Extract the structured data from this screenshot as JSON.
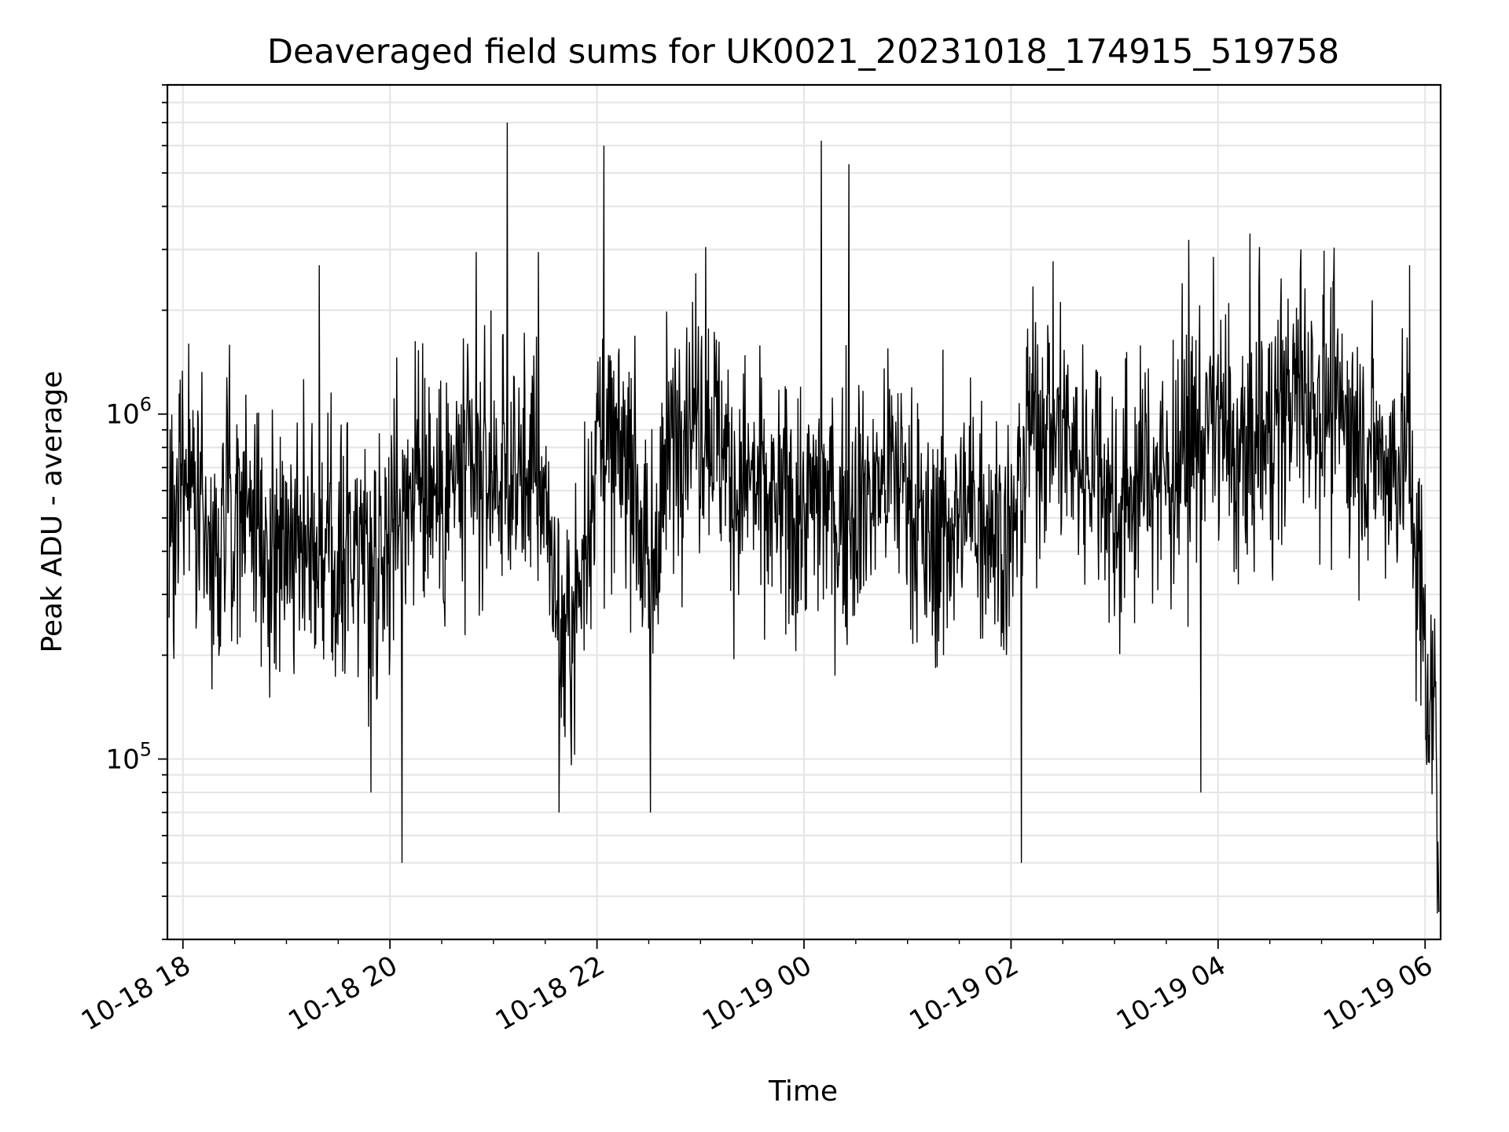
{
  "chart_data": {
    "type": "line",
    "title": "Deaveraged field sums for UK0021_20231018_174915_519758",
    "xlabel": "Time",
    "ylabel": "Peak ADU - average",
    "x_scale": "time",
    "y_scale": "log",
    "xlim": [
      "2023-10-18T17:51",
      "2023-10-19T06:09"
    ],
    "ylim": [
      30000,
      9000000
    ],
    "x_ticks": [
      "10-18 18",
      "10-18 20",
      "10-18 22",
      "10-19 00",
      "10-19 02",
      "10-19 04",
      "10-19 06"
    ],
    "y_ticks": [
      {
        "base": "10",
        "exp": "5",
        "value": 100000
      },
      {
        "base": "10",
        "exp": "6",
        "value": 1000000
      }
    ],
    "grid": true,
    "line_color": "#000000",
    "series": [
      {
        "x": [
          "2023-10-18T17:52",
          "2023-10-18T18:00",
          "2023-10-18T18:10",
          "2023-10-18T18:20",
          "2023-10-18T18:30",
          "2023-10-18T18:40",
          "2023-10-18T18:50",
          "2023-10-18T19:00",
          "2023-10-18T19:10",
          "2023-10-18T19:20",
          "2023-10-18T19:30",
          "2023-10-18T19:40",
          "2023-10-18T19:50",
          "2023-10-18T20:00",
          "2023-10-18T20:10",
          "2023-10-18T20:20",
          "2023-10-18T20:30",
          "2023-10-18T20:40",
          "2023-10-18T20:50",
          "2023-10-18T21:00",
          "2023-10-18T21:10",
          "2023-10-18T21:20",
          "2023-10-18T21:30",
          "2023-10-18T21:40",
          "2023-10-18T21:50",
          "2023-10-18T22:00",
          "2023-10-18T22:10",
          "2023-10-18T22:20",
          "2023-10-18T22:30",
          "2023-10-18T22:40",
          "2023-10-18T22:50",
          "2023-10-18T23:00",
          "2023-10-18T23:10",
          "2023-10-18T23:20",
          "2023-10-18T23:30",
          "2023-10-18T23:40",
          "2023-10-18T23:50",
          "2023-10-19T00:00",
          "2023-10-19T00:10",
          "2023-10-19T00:20",
          "2023-10-19T00:30",
          "2023-10-19T00:40",
          "2023-10-19T00:50",
          "2023-10-19T01:00",
          "2023-10-19T01:10",
          "2023-10-19T01:20",
          "2023-10-19T01:30",
          "2023-10-19T01:40",
          "2023-10-19T01:50",
          "2023-10-19T02:00",
          "2023-10-19T02:10",
          "2023-10-19T02:20",
          "2023-10-19T02:30",
          "2023-10-19T02:40",
          "2023-10-19T02:50",
          "2023-10-19T03:00",
          "2023-10-19T03:10",
          "2023-10-19T03:20",
          "2023-10-19T03:30",
          "2023-10-19T03:40",
          "2023-10-19T03:50",
          "2023-10-19T04:00",
          "2023-10-19T04:10",
          "2023-10-19T04:20",
          "2023-10-19T04:30",
          "2023-10-19T04:40",
          "2023-10-19T04:50",
          "2023-10-19T05:00",
          "2023-10-19T05:10",
          "2023-10-19T05:20",
          "2023-10-19T05:30",
          "2023-10-19T05:40",
          "2023-10-19T05:50",
          "2023-10-19T06:00",
          "2023-10-19T06:03",
          "2023-10-19T06:06",
          "2023-10-19T06:08"
        ],
        "y": [
          500000,
          700000,
          450000,
          380000,
          650000,
          550000,
          400000,
          420000,
          500000,
          400000,
          350000,
          450000,
          380000,
          500000,
          600000,
          700000,
          550000,
          650000,
          600000,
          700000,
          650000,
          700000,
          600000,
          200000,
          300000,
          900000,
          700000,
          800000,
          300000,
          700000,
          1100000,
          1000000,
          900000,
          600000,
          650000,
          500000,
          550000,
          500000,
          600000,
          500000,
          550000,
          600000,
          700000,
          650000,
          400000,
          450000,
          500000,
          550000,
          500000,
          400000,
          900000,
          1000000,
          900000,
          700000,
          800000,
          500000,
          600000,
          700000,
          650000,
          800000,
          900000,
          1000000,
          700000,
          800000,
          900000,
          1100000,
          1200000,
          1100000,
          1000000,
          900000,
          800000,
          700000,
          800000,
          200000,
          120000,
          180000,
          50000
        ]
      }
    ],
    "spikes": [
      {
        "x": "2023-10-18T21:08",
        "y": 7000000
      },
      {
        "x": "2023-10-18T22:04",
        "y": 6000000
      },
      {
        "x": "2023-10-19T00:10",
        "y": 6200000
      },
      {
        "x": "2023-10-19T00:26",
        "y": 5300000
      },
      {
        "x": "2023-10-18T19:19",
        "y": 2700000
      },
      {
        "x": "2023-10-18T20:50",
        "y": 2950000
      },
      {
        "x": "2023-10-18T21:26",
        "y": 2950000
      },
      {
        "x": "2023-10-18T23:03",
        "y": 3050000
      },
      {
        "x": "2023-10-19T03:43",
        "y": 3200000
      },
      {
        "x": "2023-10-19T04:24",
        "y": 3050000
      },
      {
        "x": "2023-10-19T04:48",
        "y": 3000000
      },
      {
        "x": "2023-10-19T05:51",
        "y": 2700000
      },
      {
        "x": "2023-10-18T20:07",
        "y": 50000
      },
      {
        "x": "2023-10-19T02:06",
        "y": 50000
      },
      {
        "x": "2023-10-18T21:38",
        "y": 70000
      },
      {
        "x": "2023-10-18T22:31",
        "y": 70000
      },
      {
        "x": "2023-10-19T03:50",
        "y": 80000
      },
      {
        "x": "2023-10-18T19:49",
        "y": 80000
      }
    ]
  }
}
